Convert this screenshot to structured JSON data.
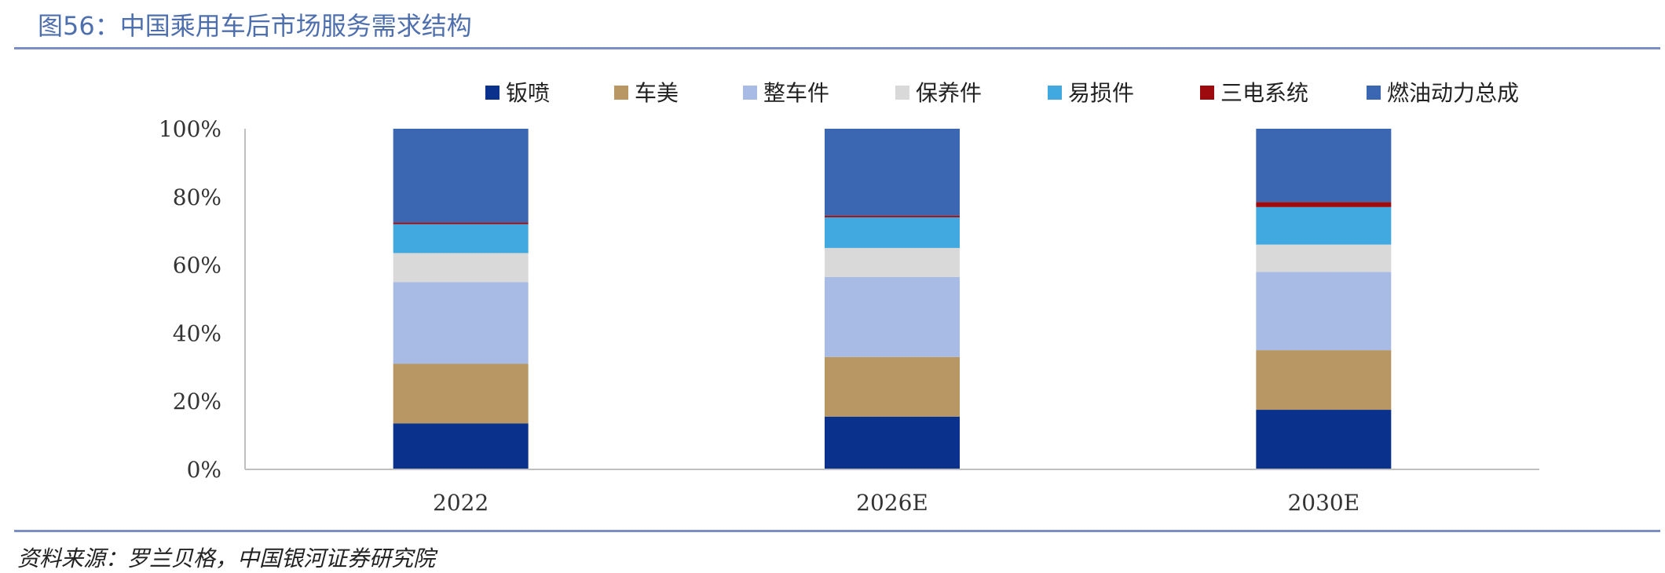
{
  "header": {
    "title": "图56：中国乘用车后市场服务需求结构"
  },
  "footer": {
    "source": "资料来源：罗兰贝格，中国银河证券研究院"
  },
  "chart_data": {
    "type": "bar",
    "stacked": true,
    "normalized": true,
    "categories": [
      "2022",
      "2026E",
      "2030E"
    ],
    "series": [
      {
        "name": "钣喷",
        "color": "#0a318c",
        "values": [
          13.5,
          15.5,
          17.5
        ]
      },
      {
        "name": "车美",
        "color": "#b89764",
        "values": [
          17.5,
          17.5,
          17.5
        ]
      },
      {
        "name": "整车件",
        "color": "#a7bbe5",
        "values": [
          24.0,
          23.5,
          23.0
        ]
      },
      {
        "name": "保养件",
        "color": "#d9d9d9",
        "values": [
          8.5,
          8.5,
          8.0
        ]
      },
      {
        "name": "易损件",
        "color": "#41a8e0",
        "values": [
          8.5,
          9.0,
          11.0
        ]
      },
      {
        "name": "三电系统",
        "color": "#9e0b0f",
        "values": [
          0.5,
          0.5,
          1.5
        ]
      },
      {
        "name": "燃油动力总成",
        "color": "#3b66b1",
        "values": [
          27.5,
          25.5,
          21.5
        ]
      }
    ],
    "ylim": [
      0,
      100
    ],
    "yticks": [
      "0%",
      "20%",
      "40%",
      "60%",
      "80%",
      "100%"
    ],
    "legend_position": "top",
    "grid": false
  }
}
